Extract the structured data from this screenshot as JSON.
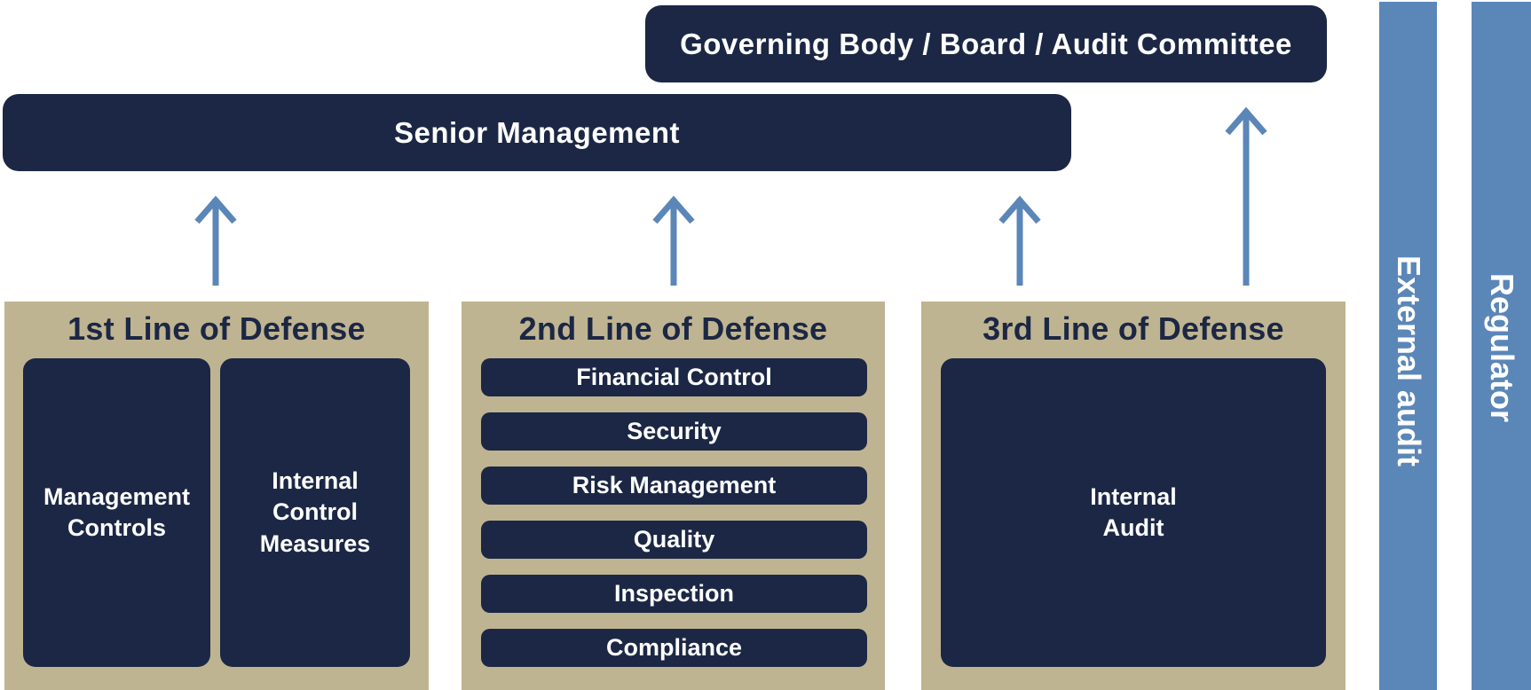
{
  "governing_body": "Governing Body / Board / Audit Committee",
  "senior_management": "Senior Management",
  "lines": [
    {
      "title": "1st Line of Defense",
      "items": [
        "Management\nControls",
        "Internal\nControl\nMeasures"
      ]
    },
    {
      "title": "2nd Line of Defense",
      "items": [
        "Financial Control",
        "Security",
        "Risk Management",
        "Quality",
        "Inspection",
        "Compliance"
      ]
    },
    {
      "title": "3rd Line of Defense",
      "items": [
        "Internal\nAudit"
      ]
    }
  ],
  "side_bars": [
    "External audit",
    "Regulator"
  ],
  "colors": {
    "navy": "#1b2744",
    "tan": "#bfb491",
    "blue": "#5b86b8"
  }
}
